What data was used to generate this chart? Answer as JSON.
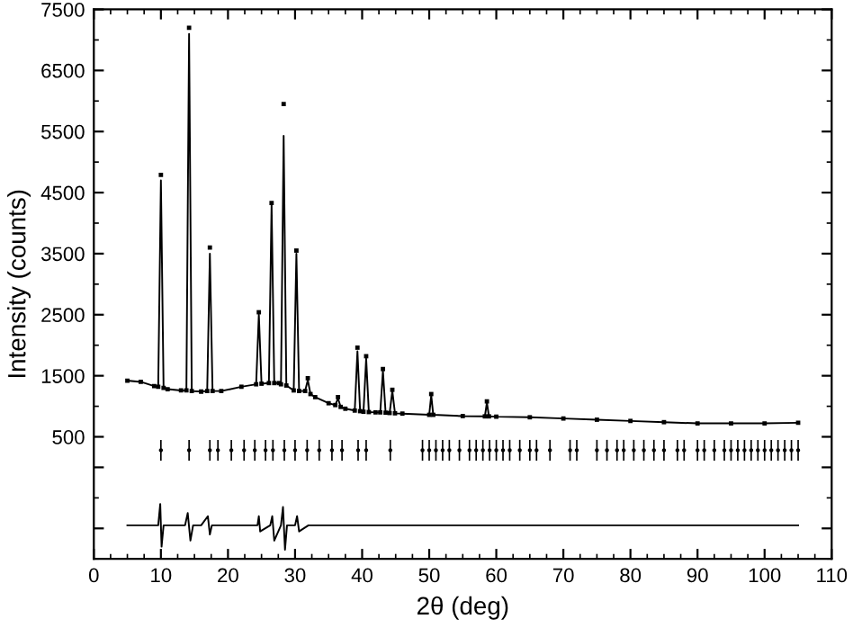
{
  "chart_data": {
    "type": "scatter",
    "xlabel": "2θ (deg)",
    "ylabel": "Intensity (counts)",
    "xlim": [
      0,
      110
    ],
    "xticks": [
      0,
      10,
      20,
      30,
      40,
      50,
      60,
      70,
      80,
      90,
      100,
      110
    ],
    "ylim": [
      -1500,
      7500
    ],
    "yticks": [
      {
        "value": -1000,
        "label": null
      },
      {
        "value": 0,
        "label": null
      },
      500,
      1500,
      2500,
      3500,
      4500,
      5500,
      6500,
      7500
    ],
    "grid": false,
    "series": [
      {
        "marker": "square",
        "color": "#000000",
        "x": [
          5,
          7,
          9,
          9.6,
          10.0,
          10.4,
          11,
          13,
          13.8,
          14.2,
          14.6,
          16,
          16.9,
          17.3,
          17.7,
          19,
          22,
          24.2,
          24.6,
          25,
          26.1,
          26.5,
          26.9,
          27.6,
          27.9,
          28.3,
          28.7,
          29.8,
          30.2,
          30.6,
          31.5,
          31.9,
          32.3,
          33,
          35,
          36.0,
          36.4,
          36.8,
          37.5,
          38.9,
          39.3,
          39.7,
          40.2,
          40.6,
          41,
          42,
          42.7,
          43.1,
          43.5,
          44.1,
          44.5,
          44.9,
          46,
          50,
          50.3,
          50.6,
          55,
          58.3,
          58.6,
          58.9,
          60,
          65,
          70,
          75,
          80,
          85,
          90,
          95,
          100,
          105
        ],
        "values": [
          1420,
          1400,
          1330,
          1320,
          4790,
          1300,
          1280,
          1260,
          1260,
          7200,
          1250,
          1240,
          1250,
          3600,
          1250,
          1250,
          1320,
          1360,
          2540,
          1370,
          1380,
          4330,
          1380,
          1380,
          1360,
          5950,
          1340,
          1260,
          3550,
          1250,
          1250,
          1460,
          1200,
          1150,
          1050,
          1020,
          1150,
          990,
          960,
          930,
          1960,
          920,
          910,
          1820,
          905,
          900,
          900,
          1610,
          895,
          890,
          1270,
          885,
          880,
          860,
          1200,
          860,
          840,
          835,
          1080,
          835,
          830,
          820,
          800,
          780,
          760,
          740,
          720,
          720,
          720,
          730
        ]
      },
      {
        "type": "line",
        "marker": "none",
        "line_style": "solid",
        "color": "#000000",
        "x": [
          5,
          7,
          9,
          9.6,
          10.0,
          10.4,
          11,
          13,
          13.8,
          14.2,
          14.6,
          16,
          16.9,
          17.3,
          17.7,
          19,
          22,
          24.2,
          24.6,
          25,
          26.1,
          26.5,
          26.9,
          27.6,
          27.9,
          28.3,
          28.7,
          29.8,
          30.2,
          30.6,
          31.5,
          31.9,
          32.3,
          33,
          35,
          36.0,
          36.4,
          36.8,
          37.5,
          38.9,
          39.3,
          39.7,
          40.2,
          40.6,
          41,
          42,
          42.7,
          43.1,
          43.5,
          44.1,
          44.5,
          44.9,
          46,
          50,
          50.3,
          50.6,
          55,
          58.3,
          58.6,
          58.9,
          60,
          65,
          70,
          75,
          80,
          85,
          90,
          95,
          100,
          105
        ],
        "values": [
          1420,
          1400,
          1330,
          1320,
          4700,
          1300,
          1280,
          1260,
          1260,
          7100,
          1250,
          1240,
          1250,
          3500,
          1250,
          1250,
          1320,
          1360,
          2500,
          1370,
          1380,
          4300,
          1380,
          1380,
          1360,
          5430,
          1340,
          1260,
          3500,
          1250,
          1250,
          1430,
          1200,
          1150,
          1050,
          1020,
          1130,
          990,
          960,
          930,
          1900,
          920,
          910,
          1780,
          905,
          900,
          900,
          1580,
          895,
          890,
          1250,
          885,
          880,
          860,
          1180,
          860,
          840,
          835,
          1060,
          835,
          830,
          820,
          800,
          780,
          760,
          740,
          720,
          720,
          720,
          730
        ]
      },
      {
        "marker": "circle",
        "color": "#000000",
        "x": [
          10,
          14.2,
          17.3,
          18.5,
          20.5,
          22.4,
          24,
          25.6,
          26.7,
          28.4,
          30,
          31.8,
          33.6,
          35.5,
          37,
          39.4,
          40.6,
          44.2,
          49,
          50,
          51,
          52,
          53,
          54.5,
          56,
          57,
          58,
          59,
          60,
          61,
          62,
          63.5,
          65,
          66,
          68,
          71,
          72,
          75,
          76.5,
          78,
          79,
          80.5,
          82,
          83.5,
          85,
          87,
          88,
          90,
          91,
          92.5,
          94,
          95,
          96,
          97,
          98,
          99,
          100,
          101,
          102,
          103,
          104,
          105
        ],
        "values": [
          280,
          280,
          280,
          280,
          280,
          280,
          280,
          280,
          280,
          280,
          280,
          280,
          280,
          280,
          280,
          280,
          280,
          280,
          280,
          280,
          280,
          280,
          280,
          280,
          280,
          280,
          280,
          280,
          280,
          280,
          280,
          280,
          280,
          280,
          280,
          280,
          280,
          280,
          280,
          280,
          280,
          280,
          280,
          280,
          280,
          280,
          280,
          280,
          280,
          280,
          280,
          280,
          280,
          280,
          280,
          280,
          280,
          280,
          280,
          280,
          280,
          280
        ],
        "errors": [
          170,
          170,
          170,
          170,
          170,
          170,
          170,
          170,
          170,
          170,
          170,
          170,
          170,
          170,
          170,
          170,
          170,
          170,
          170,
          170,
          170,
          170,
          170,
          170,
          170,
          170,
          170,
          170,
          170,
          170,
          170,
          170,
          170,
          170,
          170,
          170,
          170,
          170,
          170,
          170,
          170,
          170,
          170,
          170,
          170,
          170,
          170,
          170,
          170,
          170,
          170,
          170,
          170,
          170,
          170,
          170,
          170,
          170,
          170,
          170,
          170,
          170
        ]
      },
      {
        "type": "line",
        "marker": "none",
        "line_style": "solid",
        "color": "#000000",
        "x": [
          5,
          9.6,
          9.9,
          10.1,
          10.4,
          11,
          13.6,
          14.0,
          14.4,
          14.8,
          16,
          17.0,
          17.3,
          17.6,
          20,
          24.4,
          24.6,
          24.8,
          26.3,
          26.6,
          26.9,
          27.9,
          28.2,
          28.5,
          28.8,
          30,
          30.3,
          30.6,
          32,
          40,
          60,
          80,
          105
        ],
        "values": [
          -950,
          -950,
          -600,
          -1300,
          -950,
          -950,
          -950,
          -750,
          -1200,
          -950,
          -950,
          -800,
          -1100,
          -950,
          -950,
          -950,
          -800,
          -1050,
          -950,
          -800,
          -1200,
          -950,
          -650,
          -1350,
          -950,
          -950,
          -800,
          -1050,
          -950,
          -950,
          -950,
          -950,
          -950
        ]
      }
    ]
  }
}
